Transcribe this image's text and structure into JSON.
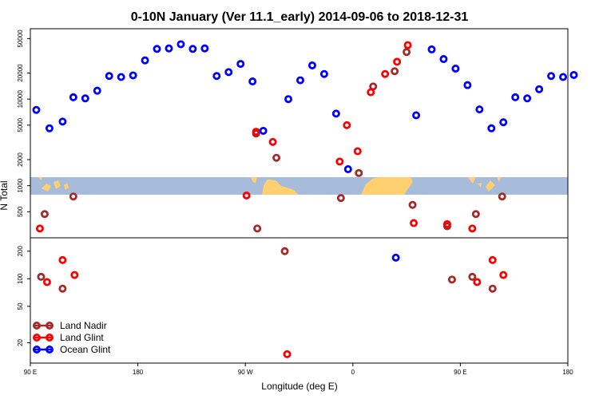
{
  "chart_data": {
    "type": "scatter",
    "title": "0-10N January (Ver 11.1_early)   2014-09-06 to 2018-12-31",
    "xlabel": "Longitude (deg E)",
    "ylabel": "N Total",
    "y_scale": "log",
    "x_axis_note": "longitude axis spans 90E eastward through 180 to 180 (wraps around)",
    "xlim": [
      0,
      450
    ],
    "x_ticks": [
      {
        "value": 0,
        "label": "90 E"
      },
      {
        "value": 90,
        "label": "180"
      },
      {
        "value": 180,
        "label": "90 W"
      },
      {
        "value": 270,
        "label": "0"
      },
      {
        "value": 360,
        "label": "90 E"
      },
      {
        "value": 450,
        "label": "180"
      }
    ],
    "upper_panel": {
      "ylim": [
        250,
        65000
      ],
      "y_ticks": [
        500,
        1000,
        2000,
        5000,
        10000,
        20000,
        50000
      ],
      "map_strip": {
        "description": "0-10N land/ocean strip",
        "ocean_color": "#a7bbdb",
        "land_color": "#ffd070"
      }
    },
    "lower_panel": {
      "ylim": [
        12,
        280
      ],
      "y_ticks": [
        20,
        50,
        100,
        200
      ]
    },
    "series": [
      {
        "name": "Land Nadir",
        "color": "#a52a2a",
        "points": [
          {
            "x": 12,
            "y": 470
          },
          {
            "x": 36,
            "y": 750
          },
          {
            "x": 189,
            "y": 4000
          },
          {
            "x": 206,
            "y": 2100
          },
          {
            "x": 190,
            "y": 320
          },
          {
            "x": 260,
            "y": 720
          },
          {
            "x": 275,
            "y": 1400
          },
          {
            "x": 287,
            "y": 14000
          },
          {
            "x": 305,
            "y": 21000
          },
          {
            "x": 315,
            "y": 35000
          },
          {
            "x": 320,
            "y": 600
          },
          {
            "x": 349,
            "y": 340
          },
          {
            "x": 373,
            "y": 470
          },
          {
            "x": 395,
            "y": 750
          },
          {
            "x": 9,
            "y": 105
          },
          {
            "x": 27,
            "y": 78
          },
          {
            "x": 213,
            "y": 200
          },
          {
            "x": 353,
            "y": 98
          },
          {
            "x": 370,
            "y": 105
          },
          {
            "x": 387,
            "y": 78
          }
        ]
      },
      {
        "name": "Land Glint",
        "color": "#ff0000",
        "points": [
          {
            "x": 8,
            "y": 320
          },
          {
            "x": 189,
            "y": 4200
          },
          {
            "x": 203,
            "y": 3200
          },
          {
            "x": 181,
            "y": 770
          },
          {
            "x": 259,
            "y": 1900
          },
          {
            "x": 265,
            "y": 5000
          },
          {
            "x": 274,
            "y": 2500
          },
          {
            "x": 285,
            "y": 12000
          },
          {
            "x": 297,
            "y": 19500
          },
          {
            "x": 307,
            "y": 27000
          },
          {
            "x": 316,
            "y": 42000
          },
          {
            "x": 321,
            "y": 370
          },
          {
            "x": 349,
            "y": 360
          },
          {
            "x": 370,
            "y": 320
          },
          {
            "x": 14,
            "y": 92
          },
          {
            "x": 27,
            "y": 160
          },
          {
            "x": 37,
            "y": 110
          },
          {
            "x": 215,
            "y": 15
          },
          {
            "x": 374,
            "y": 92
          },
          {
            "x": 387,
            "y": 160
          },
          {
            "x": 396,
            "y": 110
          }
        ]
      },
      {
        "name": "Ocean Glint",
        "color": "#0000ff",
        "points": [
          {
            "x": 5,
            "y": 7500
          },
          {
            "x": 16,
            "y": 4600
          },
          {
            "x": 27,
            "y": 5500
          },
          {
            "x": 36,
            "y": 10500
          },
          {
            "x": 46,
            "y": 10200
          },
          {
            "x": 56,
            "y": 12500
          },
          {
            "x": 66,
            "y": 18500
          },
          {
            "x": 76,
            "y": 18000
          },
          {
            "x": 86,
            "y": 18800
          },
          {
            "x": 96,
            "y": 28000
          },
          {
            "x": 106,
            "y": 38000
          },
          {
            "x": 116,
            "y": 38500
          },
          {
            "x": 126,
            "y": 43000
          },
          {
            "x": 136,
            "y": 38000
          },
          {
            "x": 146,
            "y": 38500
          },
          {
            "x": 156,
            "y": 18500
          },
          {
            "x": 166,
            "y": 20500
          },
          {
            "x": 176,
            "y": 25500
          },
          {
            "x": 186,
            "y": 16000
          },
          {
            "x": 195,
            "y": 4300
          },
          {
            "x": 216,
            "y": 10000
          },
          {
            "x": 226,
            "y": 16500
          },
          {
            "x": 236,
            "y": 24500
          },
          {
            "x": 246,
            "y": 19500
          },
          {
            "x": 256,
            "y": 6800
          },
          {
            "x": 266,
            "y": 1550
          },
          {
            "x": 323,
            "y": 6500
          },
          {
            "x": 336,
            "y": 37500
          },
          {
            "x": 346,
            "y": 29000
          },
          {
            "x": 356,
            "y": 22500
          },
          {
            "x": 366,
            "y": 14500
          },
          {
            "x": 376,
            "y": 7600
          },
          {
            "x": 386,
            "y": 4600
          },
          {
            "x": 396,
            "y": 5400
          },
          {
            "x": 406,
            "y": 10500
          },
          {
            "x": 416,
            "y": 10200
          },
          {
            "x": 426,
            "y": 13000
          },
          {
            "x": 436,
            "y": 18500
          },
          {
            "x": 446,
            "y": 18000
          },
          {
            "x": 455,
            "y": 19000
          },
          {
            "x": 306,
            "y": 170
          }
        ]
      }
    ]
  }
}
